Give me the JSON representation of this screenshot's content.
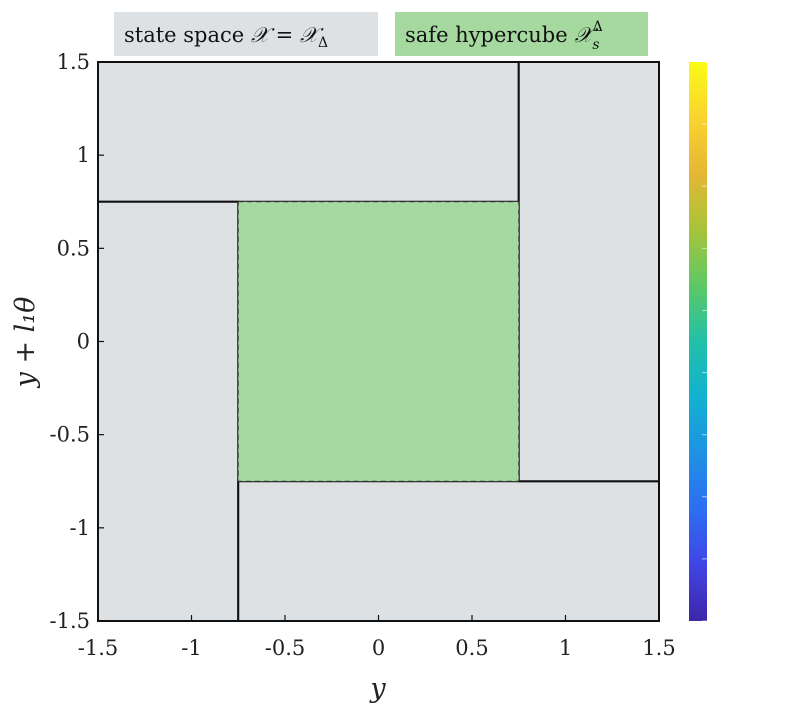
{
  "chart_data": {
    "type": "region",
    "xlabel": "y",
    "ylabel": "y + l₁θ",
    "xlim": [
      -1.5,
      1.5
    ],
    "ylim": [
      -1.5,
      1.5
    ],
    "x_ticks": [
      "-1.5",
      "-1",
      "-0.5",
      "0",
      "0.5",
      "1",
      "1.5"
    ],
    "x_tick_values": [
      -1.5,
      -1,
      -0.5,
      0,
      0.5,
      1,
      1.5
    ],
    "y_ticks": [
      "-1.5",
      "-1",
      "-0.5",
      "0",
      "0.5",
      "1",
      "1.5"
    ],
    "y_tick_values": [
      -1.5,
      -1,
      -0.5,
      0,
      0.5,
      1,
      1.5
    ],
    "legend": {
      "placement": "top",
      "entries": [
        {
          "label": "state space 𝒳 = 𝒳Δ",
          "color": "#dde1e4"
        },
        {
          "label": "safe hypercube 𝒳sΔ",
          "color": "#a5d9a0"
        }
      ]
    },
    "regions": [
      {
        "name": "state-space-top",
        "x": [
          -1.5,
          0.75
        ],
        "y": [
          0.75,
          1.5
        ],
        "color": "#dde1e4"
      },
      {
        "name": "state-space-left",
        "x": [
          -1.5,
          -0.75
        ],
        "y": [
          -1.5,
          0.75
        ],
        "color": "#dde1e4"
      },
      {
        "name": "state-space-bottom",
        "x": [
          -0.75,
          1.5
        ],
        "y": [
          -1.5,
          -0.75
        ],
        "color": "#dde1e4"
      },
      {
        "name": "state-space-right",
        "x": [
          0.75,
          1.5
        ],
        "y": [
          -0.75,
          1.5
        ],
        "color": "#dde1e4"
      },
      {
        "name": "safe-hypercube",
        "x": [
          -0.75,
          0.75
        ],
        "y": [
          -0.75,
          0.75
        ],
        "color": "#a5d9a0",
        "dashed": true
      }
    ],
    "colorbar": {
      "placement": "right",
      "colors": [
        "#3e26a8",
        "#4145e5",
        "#2d6ef2",
        "#1f92e3",
        "#12b1d0",
        "#22c0a8",
        "#5cc866",
        "#a7c43a",
        "#e5b734",
        "#fbd32f",
        "#f9fb15"
      ]
    }
  }
}
